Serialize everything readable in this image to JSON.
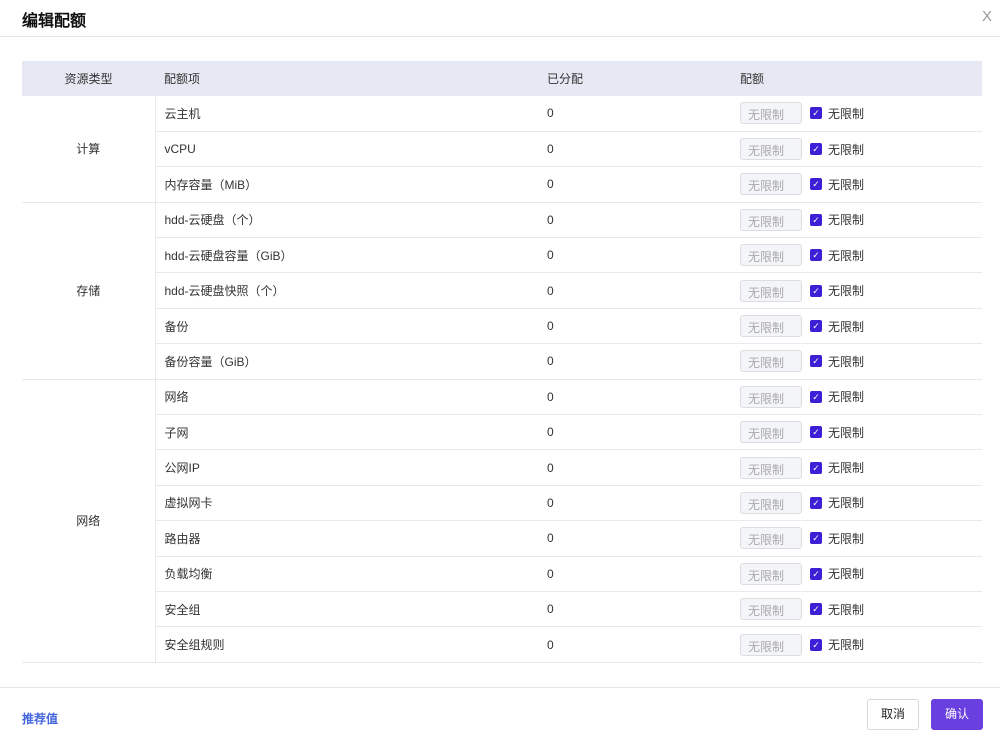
{
  "dialog": {
    "title": "编辑配额",
    "close": "X"
  },
  "table": {
    "headers": [
      "资源类型",
      "配额项",
      "已分配",
      "配额"
    ],
    "groups": [
      {
        "type": "计算",
        "items": [
          {
            "name": "云主机",
            "allocated": "0"
          },
          {
            "name": "vCPU",
            "allocated": "0"
          },
          {
            "name": "内存容量（MiB）",
            "allocated": "0"
          }
        ]
      },
      {
        "type": "存储",
        "items": [
          {
            "name": "hdd-云硬盘（个）",
            "allocated": "0"
          },
          {
            "name": "hdd-云硬盘容量（GiB）",
            "allocated": "0"
          },
          {
            "name": "hdd-云硬盘快照（个）",
            "allocated": "0"
          },
          {
            "name": "备份",
            "allocated": "0"
          },
          {
            "name": "备份容量（GiB）",
            "allocated": "0"
          }
        ]
      },
      {
        "type": "网络",
        "items": [
          {
            "name": "网络",
            "allocated": "0"
          },
          {
            "name": "子网",
            "allocated": "0"
          },
          {
            "name": "公网IP",
            "allocated": "0"
          },
          {
            "name": "虚拟网卡",
            "allocated": "0"
          },
          {
            "name": "路由器",
            "allocated": "0"
          },
          {
            "name": "负载均衡",
            "allocated": "0"
          },
          {
            "name": "安全组",
            "allocated": "0"
          },
          {
            "name": "安全组规则",
            "allocated": "0"
          }
        ]
      }
    ],
    "quota_placeholder": "无限制",
    "unlimited_label": "无限制",
    "unlimited_checked": true
  },
  "footer": {
    "recommend": "推荐值",
    "cancel": "取消",
    "confirm": "确认"
  },
  "colors": {
    "accent": "#6a3fe0",
    "checkbox": "#3d1fd6",
    "link": "#4466e0",
    "header_bg": "#e6e8f3"
  }
}
